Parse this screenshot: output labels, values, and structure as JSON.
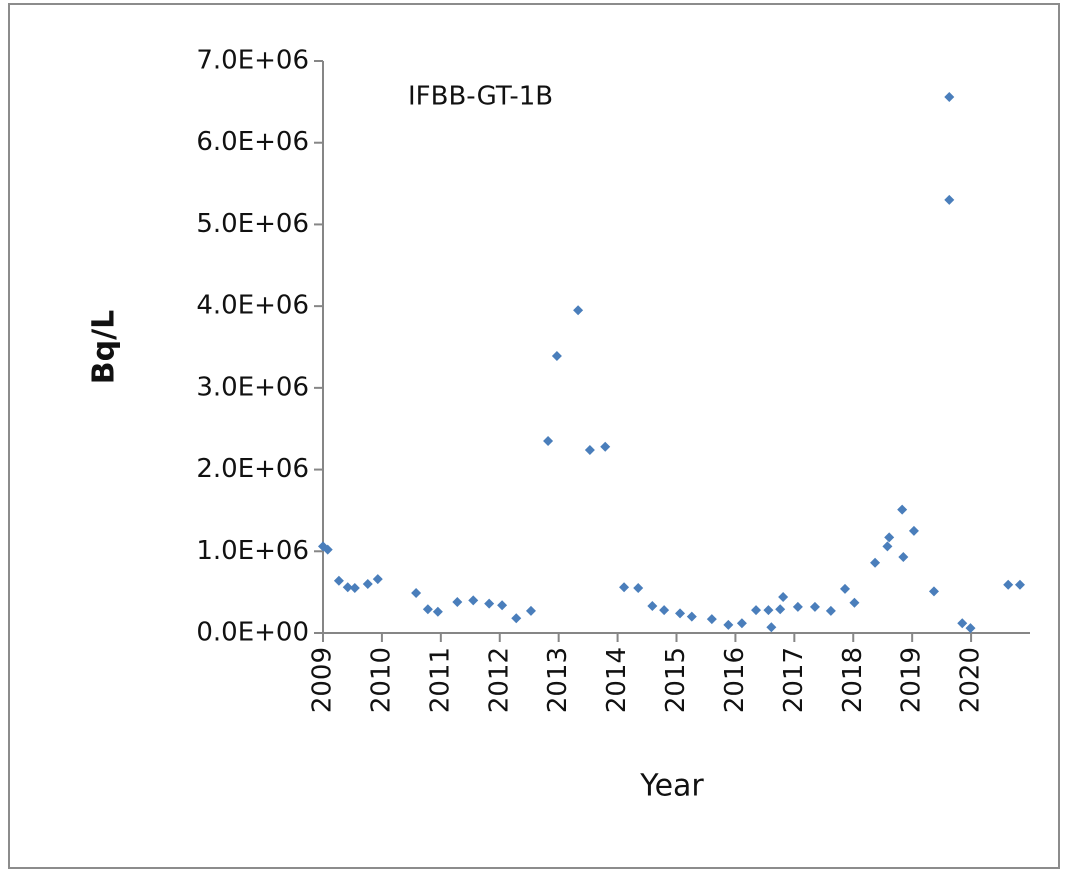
{
  "chart_data": {
    "type": "scatter",
    "annotation": "IFBB-GT-1B",
    "x_label": "Year",
    "y_label": "Bq/L",
    "color": "#4a7ebb",
    "xlim": [
      2009,
      2021
    ],
    "xticks": [
      2009,
      2010,
      2011,
      2012,
      2013,
      2014,
      2015,
      2016,
      2017,
      2018,
      2019,
      2020
    ],
    "ylim": [
      0,
      7000000
    ],
    "yticks": [
      {
        "value": 0,
        "label": "0.0E+00"
      },
      {
        "value": 1000000,
        "label": "1.0E+06"
      },
      {
        "value": 2000000,
        "label": "2.0E+06"
      },
      {
        "value": 3000000,
        "label": "3.0E+06"
      },
      {
        "value": 4000000,
        "label": "4.0E+06"
      },
      {
        "value": 5000000,
        "label": "5.0E+06"
      },
      {
        "value": 6000000,
        "label": "6.0E+06"
      },
      {
        "value": 7000000,
        "label": "7.0E+06"
      }
    ],
    "x": [
      2009.0,
      2009.08,
      2009.27,
      2009.42,
      2009.54,
      2009.76,
      2009.93,
      2010.58,
      2010.78,
      2010.95,
      2011.28,
      2011.55,
      2011.82,
      2012.04,
      2012.28,
      2012.53,
      2012.82,
      2012.97,
      2013.33,
      2013.53,
      2013.79,
      2014.11,
      2014.35,
      2014.59,
      2014.79,
      2015.06,
      2015.26,
      2015.6,
      2015.88,
      2016.11,
      2016.35,
      2016.56,
      2016.61,
      2016.76,
      2016.81,
      2017.06,
      2017.35,
      2017.62,
      2017.86,
      2018.02,
      2018.37,
      2018.58,
      2018.61,
      2018.83,
      2018.85,
      2019.03,
      2019.37,
      2019.63,
      2019.63,
      2019.85,
      2019.99,
      2020.63,
      2020.83
    ],
    "values": [
      1060000,
      1020000,
      640000,
      560000,
      550000,
      600000,
      660000,
      490000,
      290000,
      260000,
      380000,
      400000,
      360000,
      340000,
      180000,
      270000,
      2350000,
      3390000,
      3950000,
      2240000,
      2280000,
      560000,
      550000,
      330000,
      280000,
      240000,
      200000,
      170000,
      100000,
      120000,
      280000,
      280000,
      70000,
      290000,
      440000,
      320000,
      320000,
      270000,
      540000,
      370000,
      860000,
      1060000,
      1170000,
      1510000,
      930000,
      1250000,
      510000,
      6560000,
      5300000,
      120000,
      60000,
      590000,
      590000
    ]
  }
}
